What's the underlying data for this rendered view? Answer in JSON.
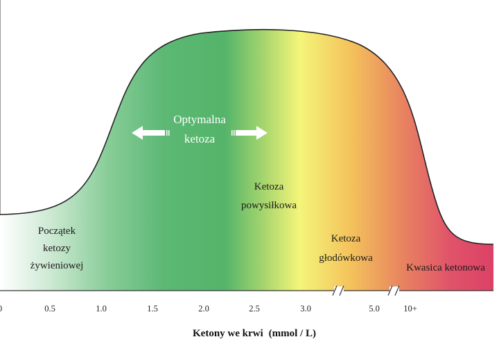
{
  "chart_data": {
    "type": "area",
    "title": "",
    "xlabel": "Ketony we krwi",
    "xlabel_unit": "(mmol / L)",
    "ylabel": "",
    "x_ticks": [
      "0",
      "0.5",
      "1.0",
      "1.5",
      "2.0",
      "2.5",
      "3.0",
      "5.0",
      "10+"
    ],
    "axis_breaks": [
      "3.0–5.0",
      "5.0–10+"
    ],
    "zones": [
      {
        "label_lines": [
          "Początek",
          "ketozy",
          "żywieniowej"
        ]
      },
      {
        "label_lines": [
          "Optymalna",
          "ketoza"
        ],
        "arrows": "both"
      },
      {
        "label_lines": [
          "Ketoza",
          "powysiłkowa"
        ]
      },
      {
        "label_lines": [
          "Ketoza",
          "głodówkowa"
        ]
      },
      {
        "label_lines": [
          "Kwasica ketonowa"
        ]
      }
    ],
    "gradient_colors": [
      "#ffffff",
      "#a8d8b4",
      "#5cb874",
      "#54b469",
      "#a8d66e",
      "#f4f57a",
      "#f4c45c",
      "#e9875f",
      "#e0546a",
      "#dc3f66"
    ]
  }
}
